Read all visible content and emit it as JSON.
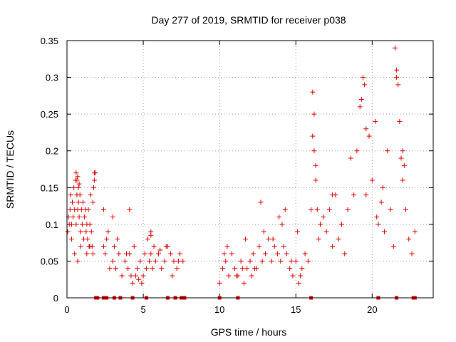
{
  "chart_data": {
    "type": "scatter",
    "title": "Day 277 of 2019, SRMTID for receiver p038",
    "xlabel": "GPS time / hours",
    "ylabel": "SRMTID / TECUs",
    "xlim": [
      0,
      24
    ],
    "ylim": [
      0,
      0.35
    ],
    "x_ticks": [
      0,
      5,
      10,
      15,
      20
    ],
    "x_tick_labels": [
      "0",
      "5",
      "10",
      "15",
      "20"
    ],
    "y_ticks": [
      0,
      0.05,
      0.1,
      0.15,
      0.2,
      0.25,
      0.3,
      0.35
    ],
    "y_tick_labels": [
      "0",
      "0.05",
      "0.1",
      "0.15",
      "0.2",
      "0.25",
      "0.3",
      "0.35"
    ],
    "grid": true,
    "marker": "plus",
    "color": "#e00000",
    "series": [
      {
        "name": "SRMTID",
        "x": [
          0.05,
          0.1,
          0.15,
          0.2,
          0.25,
          0.3,
          0.35,
          0.4,
          0.45,
          0.5,
          0.55,
          0.6,
          0.65,
          0.7,
          0.75,
          0.8,
          0.85,
          0.9,
          0.95,
          1.0,
          1.05,
          1.1,
          1.15,
          1.2,
          1.25,
          1.3,
          1.35,
          1.4,
          1.45,
          1.5,
          1.55,
          1.6,
          1.65,
          1.7,
          1.75,
          1.8,
          0.3,
          0.5,
          0.7,
          0.9,
          1.1,
          1.3,
          1.5,
          1.7,
          0.6,
          0.65,
          0.7,
          0.75,
          0.8,
          1.8,
          1.85,
          2.4,
          2.5,
          2.6,
          2.8,
          3.0,
          3.1,
          3.2,
          3.4,
          3.6,
          3.8,
          4.0,
          4.1,
          4.2,
          4.4,
          4.6,
          4.8,
          5.0,
          5.1,
          5.2,
          5.3,
          5.4,
          5.5,
          5.6,
          5.7,
          5.8,
          6.0,
          6.2,
          6.4,
          6.6,
          6.8,
          7.0,
          7.2,
          7.4,
          7.6,
          2.7,
          3.3,
          3.9,
          4.3,
          4.5,
          4.7,
          4.9,
          5.5,
          6.1,
          6.5,
          6.9,
          7.3,
          4.1,
          5.5,
          2.4,
          3.0,
          10.0,
          10.2,
          10.4,
          10.6,
          10.8,
          11.0,
          11.2,
          11.4,
          11.6,
          11.8,
          12.0,
          12.2,
          12.4,
          12.6,
          12.8,
          13.0,
          13.2,
          13.4,
          13.6,
          13.8,
          14.0,
          14.2,
          14.4,
          14.6,
          14.8,
          15.0,
          15.2,
          15.4,
          15.6,
          15.8,
          10.5,
          11.1,
          11.7,
          12.3,
          12.9,
          13.5,
          14.1,
          14.7,
          15.3,
          12.7,
          13.9,
          14.3,
          15.1,
          10.3,
          11.5,
          12.1,
          16.0,
          16.1,
          16.2,
          16.3,
          16.4,
          16.5,
          16.6,
          16.8,
          17.0,
          17.2,
          17.4,
          17.6,
          17.8,
          18.0,
          18.2,
          18.4,
          18.6,
          18.8,
          19.0,
          19.2,
          19.4,
          19.6,
          19.8,
          20.0,
          20.2,
          20.4,
          20.6,
          20.8,
          21.0,
          21.2,
          21.4,
          21.6,
          21.8,
          22.0,
          22.2,
          22.4,
          22.6,
          22.8,
          16.1,
          16.2,
          16.3,
          17.4,
          19.3,
          19.5,
          19.6,
          21.5,
          21.6,
          21.7,
          20.3,
          20.7,
          22.0,
          22.1,
          21.9
        ],
        "y": [
          0.09,
          0.11,
          0.1,
          0.12,
          0.14,
          0.1,
          0.13,
          0.11,
          0.15,
          0.12,
          0.16,
          0.1,
          0.14,
          0.12,
          0.13,
          0.11,
          0.14,
          0.09,
          0.12,
          0.1,
          0.13,
          0.08,
          0.11,
          0.12,
          0.09,
          0.1,
          0.08,
          0.12,
          0.07,
          0.1,
          0.14,
          0.09,
          0.07,
          0.13,
          0.15,
          0.17,
          0.08,
          0.06,
          0.05,
          0.07,
          0.08,
          0.06,
          0.07,
          0.06,
          0.17,
          0.16,
          0.165,
          0.15,
          0.155,
          0.16,
          0.17,
          0.07,
          0.06,
          0.08,
          0.04,
          0.05,
          0.07,
          0.04,
          0.06,
          0.03,
          0.05,
          0.04,
          0.06,
          0.03,
          0.07,
          0.04,
          0.05,
          0.03,
          0.06,
          0.04,
          0.08,
          0.05,
          0.06,
          0.04,
          0.07,
          0.05,
          0.06,
          0.04,
          0.05,
          0.07,
          0.06,
          0.05,
          0.04,
          0.06,
          0.05,
          0.09,
          0.08,
          0.06,
          0.02,
          0.03,
          0.025,
          0.02,
          0.09,
          0.065,
          0.07,
          0.03,
          0.05,
          0.12,
          0.085,
          0.12,
          0.11,
          0.02,
          0.04,
          0.05,
          0.03,
          0.06,
          0.04,
          0.03,
          0.05,
          0.02,
          0.04,
          0.05,
          0.06,
          0.04,
          0.07,
          0.05,
          0.06,
          0.08,
          0.05,
          0.07,
          0.06,
          0.05,
          0.07,
          0.06,
          0.04,
          0.03,
          0.05,
          0.02,
          0.04,
          0.06,
          0.05,
          0.07,
          0.03,
          0.08,
          0.04,
          0.09,
          0.08,
          0.1,
          0.05,
          0.03,
          0.13,
          0.11,
          0.12,
          0.09,
          0.06,
          0.04,
          0.03,
          0.12,
          0.28,
          0.2,
          0.16,
          0.12,
          0.08,
          0.1,
          0.11,
          0.09,
          0.12,
          0.07,
          0.14,
          0.08,
          0.1,
          0.06,
          0.12,
          0.19,
          0.14,
          0.2,
          0.26,
          0.3,
          0.14,
          0.22,
          0.16,
          0.24,
          0.1,
          0.13,
          0.09,
          0.2,
          0.12,
          0.07,
          0.3,
          0.24,
          0.16,
          0.12,
          0.08,
          0.06,
          0.09,
          0.22,
          0.25,
          0.18,
          0.14,
          0.27,
          0.29,
          0.23,
          0.34,
          0.31,
          0.29,
          0.11,
          0.15,
          0.2,
          0.18,
          0.19
        ]
      }
    ],
    "zero_markers_x": [
      1.9,
      2.0,
      2.4,
      2.6,
      3.1,
      3.5,
      4.3,
      5.2,
      6.6,
      7.1,
      7.5,
      7.7,
      10.0,
      11.2,
      16.0,
      20.4,
      21.6,
      22.7,
      22.8
    ]
  }
}
